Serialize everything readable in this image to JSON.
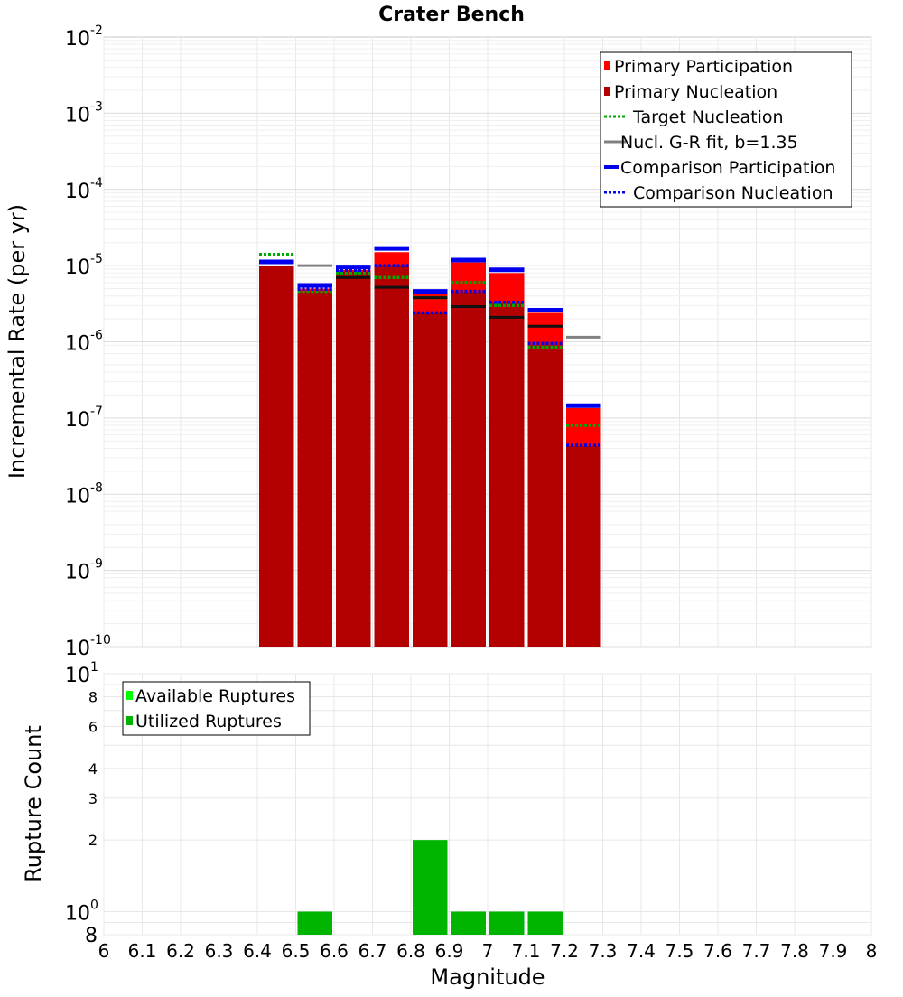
{
  "chart_data": {
    "title": "Crater Bench",
    "xlabel": "Magnitude",
    "xlim": [
      6.0,
      8.0
    ],
    "xticks": [
      "6",
      "6.1",
      "6.2",
      "6.3",
      "6.4",
      "6.5",
      "6.6",
      "6.7",
      "6.8",
      "6.9",
      "7",
      "7.1",
      "7.2",
      "7.3",
      "7.4",
      "7.5",
      "7.6",
      "7.7",
      "7.8",
      "7.9",
      "8"
    ],
    "bin_width": 0.1,
    "top": {
      "type": "bar",
      "scale": "log",
      "ylabel": "Incremental Rate (per yr)",
      "ylim": [
        1e-10,
        0.01
      ],
      "yticks": [
        {
          "base": "10",
          "exp": "-2"
        },
        {
          "base": "10",
          "exp": "-3"
        },
        {
          "base": "10",
          "exp": "-4"
        },
        {
          "base": "10",
          "exp": "-5"
        },
        {
          "base": "10",
          "exp": "-6"
        },
        {
          "base": "10",
          "exp": "-7"
        },
        {
          "base": "10",
          "exp": "-8"
        },
        {
          "base": "10",
          "exp": "-9"
        },
        {
          "base": "10",
          "exp": "-10"
        }
      ],
      "bins": [
        6.45,
        6.55,
        6.65,
        6.75,
        6.85,
        6.95,
        7.05,
        7.15,
        7.25
      ],
      "series": [
        {
          "name": "Primary Participation",
          "style": "bar",
          "color": "#ff0000",
          "values": [
            1e-05,
            5e-06,
            8.8e-06,
            1.5e-05,
            4.2e-06,
            1.1e-05,
            8e-06,
            2.4e-06,
            1.35e-07
          ]
        },
        {
          "name": "Primary Nucleation",
          "style": "bar",
          "color": "#b30000",
          "values": [
            1e-05,
            4.5e-06,
            8.3e-06,
            1e-05,
            2.4e-06,
            4.5e-06,
            3.2e-06,
            9e-07,
            4.3e-08
          ]
        },
        {
          "name": "Target Nucleation",
          "style": "dotted",
          "color": "#00aa00",
          "values": [
            1.4e-05,
            4.6e-06,
            8e-06,
            7e-06,
            3.8e-06,
            6e-06,
            3e-06,
            8.5e-07,
            8e-08
          ]
        },
        {
          "name": "Nucl. G-R fit, b=1.35",
          "style": "line",
          "color": "#808080",
          "values": [
            null,
            1e-05,
            null,
            null,
            null,
            null,
            null,
            null,
            1.15e-06
          ]
        },
        {
          "name": "",
          "style": "line",
          "color": "#111111",
          "values": [
            null,
            null,
            7e-06,
            5.2e-06,
            3.8e-06,
            2.9e-06,
            2.1e-06,
            1.6e-06,
            null
          ]
        },
        {
          "name": "Comparison Participation",
          "style": "thick",
          "color": "#0000ee",
          "values": [
            1.12e-05,
            5.5e-06,
            9.6e-06,
            1.68e-05,
            4.6e-06,
            1.18e-05,
            8.8e-06,
            2.6e-06,
            1.45e-07
          ]
        },
        {
          "name": "Comparison Nucleation",
          "style": "dotted",
          "color": "#0000ee",
          "values": [
            1.1e-05,
            4.9e-06,
            8.7e-06,
            1e-05,
            2.4e-06,
            4.6e-06,
            3.3e-06,
            9.5e-07,
            4.4e-08
          ]
        }
      ],
      "legend_position": "top-right"
    },
    "bottom": {
      "type": "bar",
      "scale": "log",
      "ylabel": "Rupture Count",
      "ylim": [
        0.8,
        10
      ],
      "yticks_major": [
        {
          "base": "10",
          "exp": "1",
          "value": 10
        },
        {
          "base": "10",
          "exp": "0",
          "value": 1
        }
      ],
      "yticks_minor": [
        {
          "label": "8",
          "value": 8
        },
        {
          "label": "6",
          "value": 6
        },
        {
          "label": "4",
          "value": 4
        },
        {
          "label": "3",
          "value": 3
        },
        {
          "label": "2",
          "value": 2
        },
        {
          "label": "8",
          "value": 0.8
        }
      ],
      "bins": [
        6.55,
        6.85,
        6.95,
        7.05,
        7.15
      ],
      "series": [
        {
          "name": "Available Ruptures",
          "color": "#00ff00",
          "values": [
            1,
            2,
            1,
            1,
            1
          ]
        },
        {
          "name": "Utilized Ruptures",
          "color": "#00b400",
          "values": [
            1,
            2,
            1,
            1,
            1
          ]
        }
      ],
      "legend_position": "top-left"
    },
    "grid": true
  }
}
